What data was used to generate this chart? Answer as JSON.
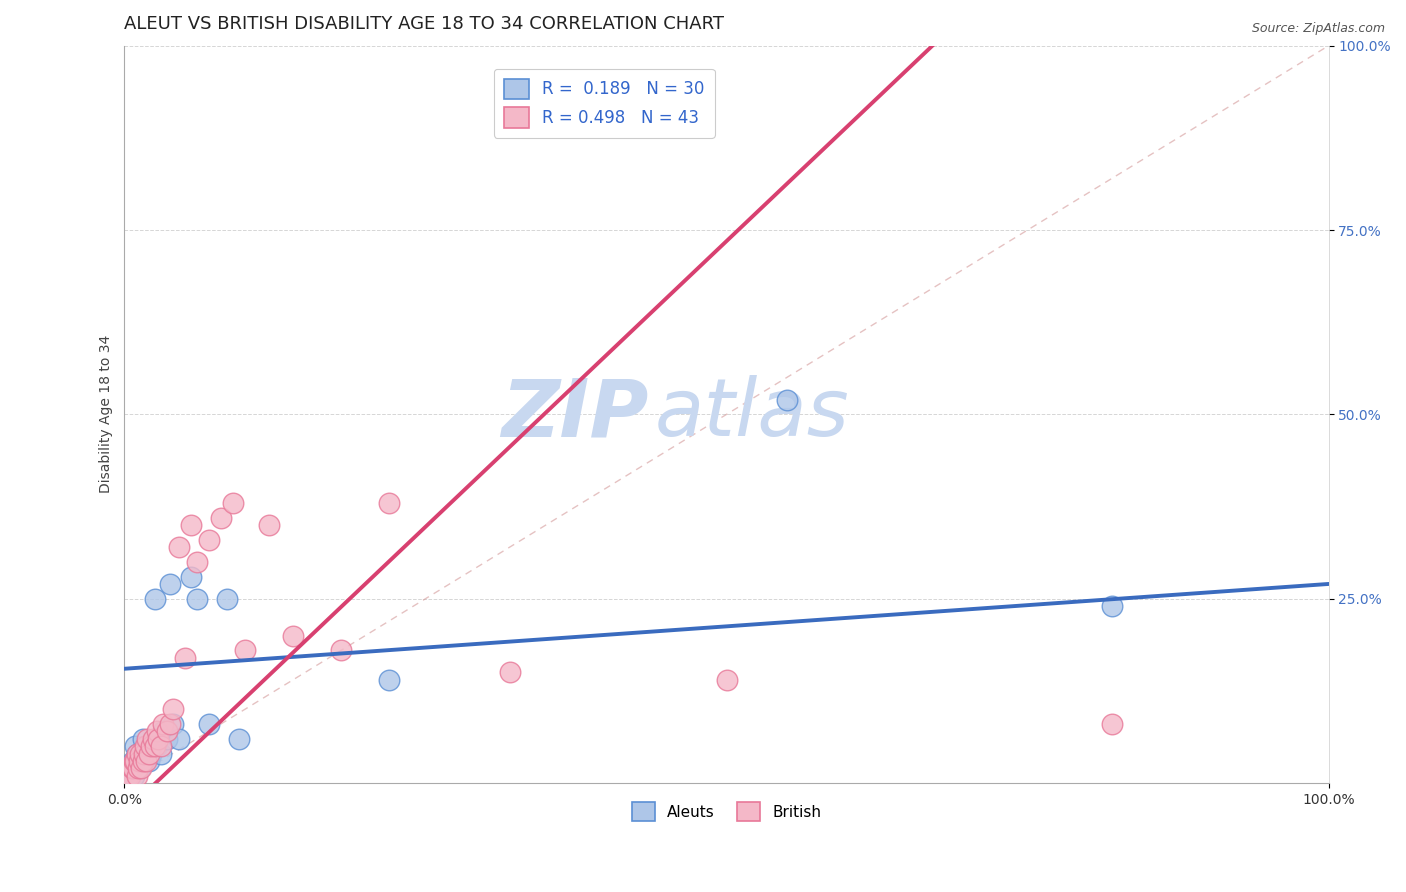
{
  "title": "ALEUT VS BRITISH DISABILITY AGE 18 TO 34 CORRELATION CHART",
  "source": "Source: ZipAtlas.com",
  "ylabel": "Disability Age 18 to 34",
  "xlim": [
    0,
    1
  ],
  "ylim": [
    0,
    1
  ],
  "xtick_labels": [
    "0.0%",
    "100.0%"
  ],
  "xtick_vals": [
    0,
    1.0
  ],
  "ytick_labels": [
    "100.0%",
    "75.0%",
    "50.0%",
    "25.0%"
  ],
  "ytick_vals": [
    1.0,
    0.75,
    0.5,
    0.25
  ],
  "aleut_R": 0.189,
  "aleut_N": 30,
  "british_R": 0.498,
  "british_N": 43,
  "aleut_color": "#aec6e8",
  "british_color": "#f4b8c8",
  "aleut_edge_color": "#5b8fd4",
  "british_edge_color": "#e87898",
  "aleut_line_color": "#3a6bbf",
  "british_line_color": "#d84070",
  "diag_color": "#d09090",
  "watermark_color": "#c8d8f0",
  "title_color": "#222222",
  "ytick_color": "#4472c4",
  "xtick_color": "#333333",
  "aleut_line_intercept": 0.155,
  "aleut_line_slope": 0.115,
  "british_line_intercept": -0.04,
  "british_line_slope": 1.55,
  "aleuts_x": [
    0.005,
    0.007,
    0.008,
    0.009,
    0.01,
    0.01,
    0.012,
    0.013,
    0.015,
    0.015,
    0.016,
    0.018,
    0.02,
    0.022,
    0.025,
    0.027,
    0.03,
    0.032,
    0.035,
    0.038,
    0.04,
    0.045,
    0.055,
    0.06,
    0.07,
    0.085,
    0.095,
    0.22,
    0.55,
    0.82
  ],
  "aleuts_y": [
    0.02,
    0.03,
    0.01,
    0.05,
    0.02,
    0.04,
    0.03,
    0.02,
    0.04,
    0.06,
    0.03,
    0.05,
    0.03,
    0.04,
    0.25,
    0.05,
    0.04,
    0.07,
    0.06,
    0.27,
    0.08,
    0.06,
    0.28,
    0.25,
    0.08,
    0.25,
    0.06,
    0.14,
    0.52,
    0.24
  ],
  "british_x": [
    0.003,
    0.005,
    0.006,
    0.007,
    0.008,
    0.009,
    0.01,
    0.01,
    0.011,
    0.012,
    0.013,
    0.014,
    0.015,
    0.016,
    0.017,
    0.018,
    0.019,
    0.02,
    0.022,
    0.024,
    0.025,
    0.027,
    0.028,
    0.03,
    0.032,
    0.035,
    0.038,
    0.04,
    0.045,
    0.05,
    0.055,
    0.06,
    0.07,
    0.08,
    0.09,
    0.1,
    0.12,
    0.14,
    0.18,
    0.22,
    0.32,
    0.5,
    0.82
  ],
  "british_y": [
    0.01,
    0.01,
    0.02,
    0.02,
    0.03,
    0.03,
    0.01,
    0.04,
    0.02,
    0.03,
    0.04,
    0.02,
    0.03,
    0.04,
    0.05,
    0.03,
    0.06,
    0.04,
    0.05,
    0.06,
    0.05,
    0.07,
    0.06,
    0.05,
    0.08,
    0.07,
    0.08,
    0.1,
    0.32,
    0.17,
    0.35,
    0.3,
    0.33,
    0.36,
    0.38,
    0.18,
    0.35,
    0.2,
    0.18,
    0.38,
    0.15,
    0.14,
    0.08
  ],
  "title_fontsize": 13,
  "axis_label_fontsize": 10,
  "tick_fontsize": 10,
  "legend_fontsize": 12
}
